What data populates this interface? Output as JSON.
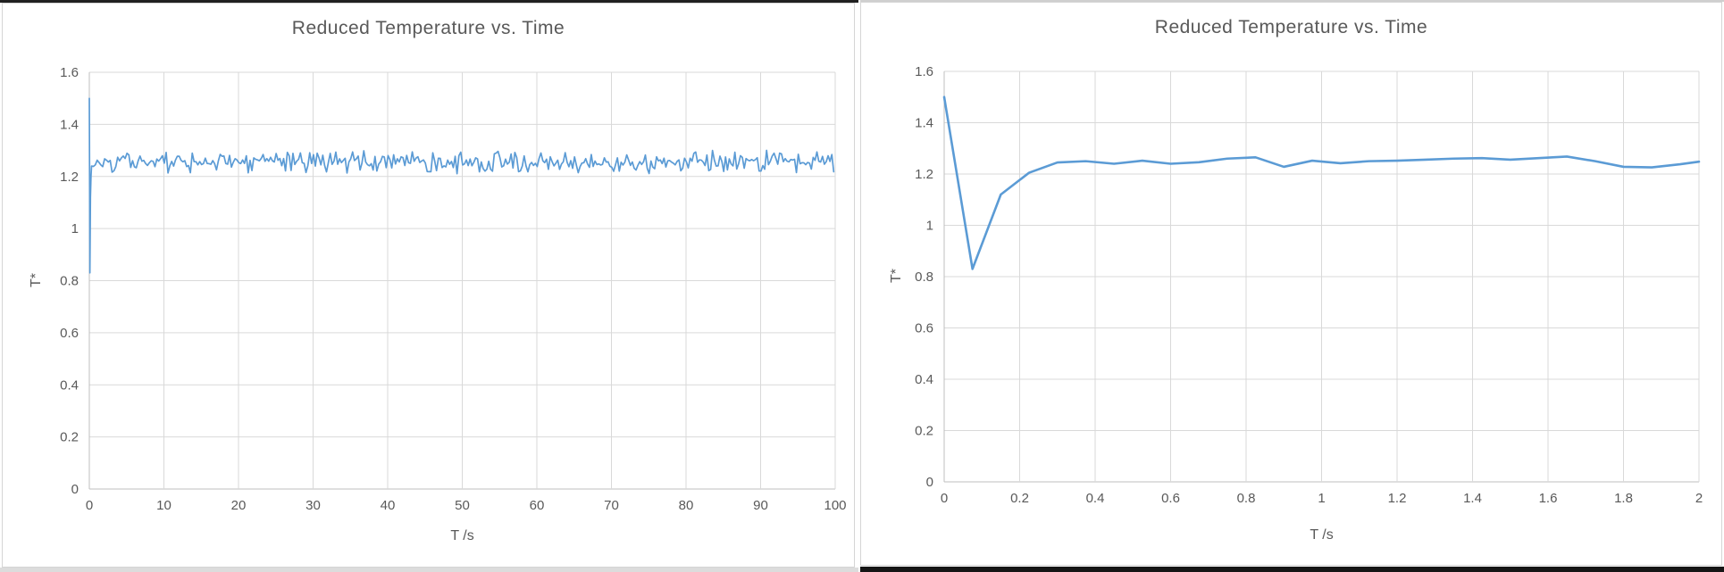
{
  "window": {
    "description": "Two spreadsheet chart objects side by side",
    "left_panel_title": "Reduced Temperature vs. Time",
    "right_panel_title": "Reduced Temperature vs. Time"
  },
  "colors": {
    "series_line": "#5B9BD5",
    "title_text": "#595959",
    "tick_text": "#595959",
    "gridline": "#D9D9D9",
    "axis_line": "#BFBFBF",
    "panel_border": "#D5D5D5",
    "left_top_edge": "#202020",
    "right_top_edge": "#CFCFCF",
    "left_bottom_edge": "#DCDCDC",
    "right_bottom_edge": "#151515",
    "plot_background": "#FFFFFF"
  },
  "chart_data": [
    {
      "type": "line",
      "title": "Reduced Temperature vs. Time",
      "xlabel": "T /s",
      "ylabel": "T*",
      "xlim": [
        0,
        100
      ],
      "ylim": [
        0,
        1.6
      ],
      "xticks": [
        0,
        10,
        20,
        30,
        40,
        50,
        60,
        70,
        80,
        90,
        100
      ],
      "yticks": [
        0,
        0.2,
        0.4,
        0.6,
        0.8,
        1,
        1.2,
        1.4,
        1.6
      ],
      "grid": true,
      "legend": "none",
      "line_color": "#5B9BD5",
      "series": [
        {
          "name": "T*",
          "initial_transient": [
            [
              0,
              1.5
            ],
            [
              0.075,
              0.83
            ],
            [
              0.15,
              1.12
            ],
            [
              0.225,
              1.2
            ],
            [
              0.3,
              1.24
            ]
          ],
          "steady_state_noise": {
            "description": "dense random fluctuation band read from pixels, approx 1.21 to 1.30",
            "t_start": 0.3,
            "t_end": 100,
            "sample_step": 0.25,
            "mean": 1.255,
            "amplitude": 0.048,
            "seed": 421337
          }
        }
      ]
    },
    {
      "type": "line",
      "title": "Reduced Temperature vs. Time",
      "xlabel": "T /s",
      "ylabel": "T*",
      "xlim": [
        0,
        2
      ],
      "ylim": [
        0,
        1.6
      ],
      "xticks": [
        0,
        0.2,
        0.4,
        0.6,
        0.8,
        1,
        1.2,
        1.4,
        1.6,
        1.8,
        2
      ],
      "yticks": [
        0,
        0.2,
        0.4,
        0.6,
        0.8,
        1,
        1.2,
        1.4,
        1.6
      ],
      "grid": true,
      "legend": "none",
      "line_color": "#5B9BD5",
      "series": [
        {
          "name": "T*",
          "points": [
            [
              0,
              1.5
            ],
            [
              0.075,
              0.83
            ],
            [
              0.15,
              1.12
            ],
            [
              0.225,
              1.205
            ],
            [
              0.3,
              1.245
            ],
            [
              0.375,
              1.25
            ],
            [
              0.45,
              1.24
            ],
            [
              0.525,
              1.252
            ],
            [
              0.6,
              1.24
            ],
            [
              0.675,
              1.246
            ],
            [
              0.75,
              1.26
            ],
            [
              0.825,
              1.265
            ],
            [
              0.9,
              1.228
            ],
            [
              0.975,
              1.252
            ],
            [
              1.05,
              1.242
            ],
            [
              1.125,
              1.25
            ],
            [
              1.2,
              1.252
            ],
            [
              1.275,
              1.256
            ],
            [
              1.35,
              1.26
            ],
            [
              1.425,
              1.262
            ],
            [
              1.5,
              1.256
            ],
            [
              1.575,
              1.262
            ],
            [
              1.65,
              1.268
            ],
            [
              1.725,
              1.25
            ],
            [
              1.8,
              1.228
            ],
            [
              1.875,
              1.226
            ],
            [
              1.95,
              1.238
            ],
            [
              2,
              1.248
            ]
          ]
        }
      ]
    }
  ]
}
